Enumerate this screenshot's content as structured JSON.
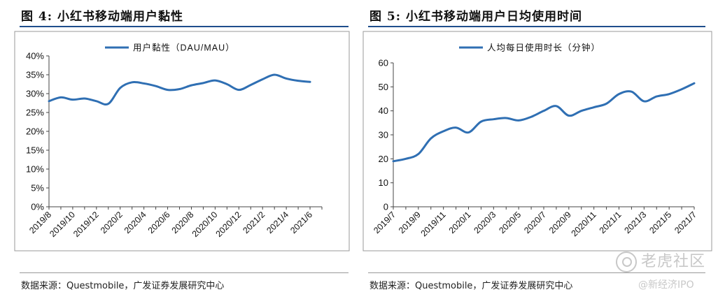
{
  "figures": [
    {
      "title": "图 4: 小红书移动端用户黏性",
      "source": "数据来源：Questmobile，广发证券发展研究中心"
    },
    {
      "title": "图 5: 小红书移动端用户日均使用时间",
      "source": "数据来源：Questmobile，广发证券发展研究中心"
    }
  ],
  "watermark": {
    "main": "老虎社区",
    "sub": "@新经济IPO"
  },
  "chart_data": [
    {
      "type": "line",
      "legend": "用户黏性（DAU/MAU）",
      "legend_position": "top-center",
      "grid": false,
      "line_color": "#2f6fb3",
      "x": [
        "2019/8",
        "2019/9",
        "2019/10",
        "2019/11",
        "2019/12",
        "2020/1",
        "2020/2",
        "2020/3",
        "2020/4",
        "2020/5",
        "2020/6",
        "2020/7",
        "2020/8",
        "2020/9",
        "2020/10",
        "2020/11",
        "2020/12",
        "2021/1",
        "2021/2",
        "2021/3",
        "2021/4",
        "2021/5",
        "2021/6",
        "2021/7"
      ],
      "x_tick_labels": [
        "2019/8",
        "2019/10",
        "2019/12",
        "2020/2",
        "2020/4",
        "2020/6",
        "2020/8",
        "2020/10",
        "2020/12",
        "2021/2",
        "2021/4",
        "2021/6"
      ],
      "y": [
        28,
        29,
        28.4,
        28.7,
        28,
        27.3,
        31.5,
        33,
        32.7,
        32,
        31,
        31.2,
        32.2,
        32.8,
        33.5,
        32.5,
        31,
        32.3,
        33.8,
        35,
        34,
        33.4,
        33.1,
        null
      ],
      "y_ticks": [
        "0%",
        "5%",
        "10%",
        "15%",
        "20%",
        "25%",
        "30%",
        "35%",
        "40%"
      ],
      "ylim": [
        0,
        40
      ]
    },
    {
      "type": "line",
      "legend": "人均每日使用时长（分钟）",
      "legend_position": "top-center",
      "grid": false,
      "line_color": "#2f6fb3",
      "x": [
        "2019/7",
        "2019/8",
        "2019/9",
        "2019/10",
        "2019/11",
        "2019/12",
        "2020/1",
        "2020/2",
        "2020/3",
        "2020/4",
        "2020/5",
        "2020/6",
        "2020/7",
        "2020/8",
        "2020/9",
        "2020/10",
        "2020/11",
        "2020/12",
        "2021/1",
        "2021/2",
        "2021/3",
        "2021/4",
        "2021/5",
        "2021/6",
        "2021/7"
      ],
      "x_tick_labels": [
        "2019/7",
        "2019/9",
        "2019/11",
        "2020/1",
        "2020/3",
        "2020/5",
        "2020/7",
        "2020/9",
        "2020/11",
        "2021/1",
        "2021/3",
        "2021/5",
        "2021/7"
      ],
      "y": [
        19,
        20,
        22,
        28.5,
        31.5,
        33,
        31,
        35.5,
        36.5,
        37,
        36,
        37.5,
        40,
        42,
        38,
        40,
        41.5,
        43,
        47,
        48,
        44,
        46,
        47,
        49,
        51.5
      ],
      "y_ticks": [
        "0",
        "10",
        "20",
        "30",
        "40",
        "50",
        "60"
      ],
      "ylim": [
        0,
        60
      ]
    }
  ]
}
